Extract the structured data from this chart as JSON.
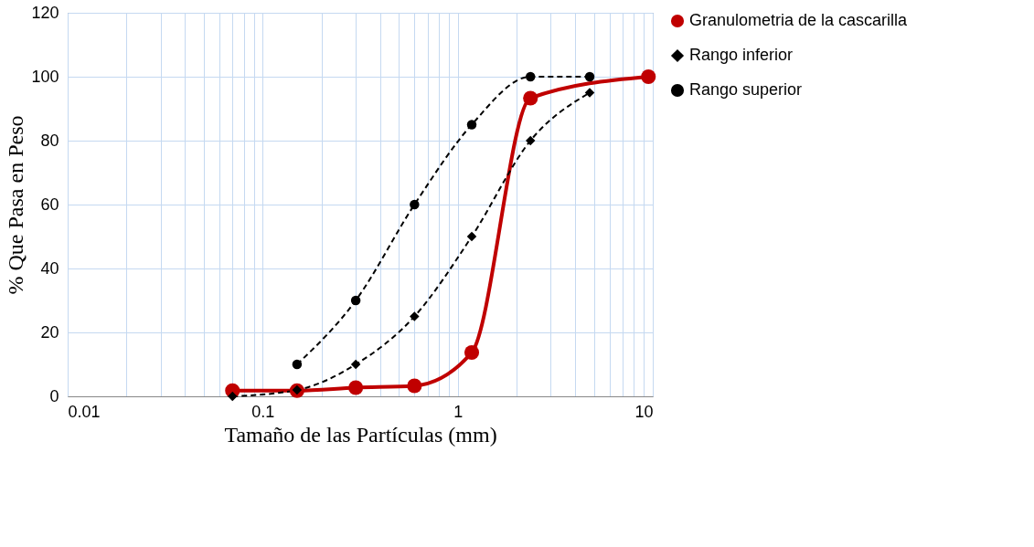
{
  "chart_data": {
    "type": "line",
    "xlabel": "Tamaño de las Partículas (mm)",
    "ylabel": "% Que Pasa en Peso",
    "log": "x",
    "grid": true,
    "legend": "right",
    "xlim": [
      0.01,
      10
    ],
    "xticks": [
      0.01,
      {
        "value": 0.02,
        "label": null
      },
      {
        "value": 0.03,
        "label": null
      },
      {
        "value": 0.04,
        "label": null
      },
      {
        "value": 0.05,
        "label": null
      },
      {
        "value": 0.06,
        "label": null
      },
      {
        "value": 0.07,
        "label": null
      },
      {
        "value": 0.08,
        "label": null
      },
      {
        "value": 0.09,
        "label": null
      },
      0.1,
      {
        "value": 0.2,
        "label": null
      },
      {
        "value": 0.3,
        "label": null
      },
      {
        "value": 0.4,
        "label": null
      },
      {
        "value": 0.5,
        "label": null
      },
      {
        "value": 0.6,
        "label": null
      },
      {
        "value": 0.7,
        "label": null
      },
      {
        "value": 0.8,
        "label": null
      },
      {
        "value": 0.9,
        "label": null
      },
      1,
      {
        "value": 2,
        "label": null
      },
      {
        "value": 3,
        "label": null
      },
      {
        "value": 4,
        "label": null
      },
      {
        "value": 5,
        "label": null
      },
      {
        "value": 6,
        "label": null
      },
      {
        "value": 7,
        "label": null
      },
      {
        "value": 8,
        "label": null
      },
      {
        "value": 9,
        "label": null
      },
      10
    ],
    "ylim": [
      0,
      120
    ],
    "yticks": [
      0,
      20,
      40,
      60,
      80,
      100,
      120
    ],
    "series": [
      {
        "name": "Granulometria de la cascarilla",
        "color": "#c00000",
        "line_style": "solid",
        "marker": "circle",
        "x": [
          0.07,
          0.15,
          0.3,
          0.6,
          1.18,
          2.36,
          9.5
        ],
        "values": [
          1.8,
          1.8,
          2.7,
          3.3,
          13.7,
          93.3,
          100
        ]
      },
      {
        "name": "Rango inferior",
        "color": "#000000",
        "line_style": "dashed",
        "marker": "diamond",
        "x": [
          0.07,
          0.15,
          0.3,
          0.6,
          1.18,
          2.36,
          4.75
        ],
        "values": [
          0,
          2,
          10,
          25,
          50,
          80,
          95
        ]
      },
      {
        "name": "Rango superior",
        "color": "#000000",
        "line_style": "dashed",
        "marker": "circle",
        "x": [
          0.15,
          0.3,
          0.6,
          1.18,
          2.36,
          4.75
        ],
        "values": [
          10,
          30,
          60,
          85,
          100,
          100
        ]
      }
    ]
  }
}
